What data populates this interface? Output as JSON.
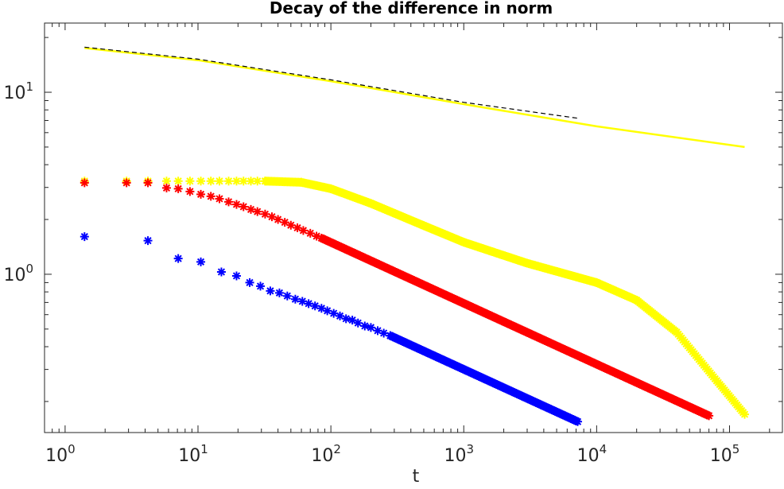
{
  "chart_data": {
    "type": "scatter",
    "title": "Decay of the difference in norm",
    "xlabel": "t",
    "ylabel": "",
    "xscale": "log",
    "yscale": "log",
    "xlim": [
      0.7,
      250000
    ],
    "ylim": [
      0.135,
      24
    ],
    "grid": false,
    "legend": "none",
    "x_ticks": [
      {
        "base": "10",
        "exp": "0",
        "value": 1
      },
      {
        "base": "10",
        "exp": "1",
        "value": 10
      },
      {
        "base": "10",
        "exp": "2",
        "value": 100
      },
      {
        "base": "10",
        "exp": "3",
        "value": 1000
      },
      {
        "base": "10",
        "exp": "4",
        "value": 10000
      },
      {
        "base": "10",
        "exp": "5",
        "value": 100000
      }
    ],
    "y_ticks": [
      {
        "base": "10",
        "exp": "0",
        "value": 1
      },
      {
        "base": "10",
        "exp": "1",
        "value": 10
      }
    ],
    "series": [
      {
        "marker": "asterisk",
        "color": "#0000ff",
        "points": [
          [
            1.4,
            1.61
          ],
          [
            4.2,
            1.53
          ],
          [
            7.1,
            1.22
          ],
          [
            10.5,
            1.17
          ],
          [
            15,
            1.03
          ],
          [
            19.5,
            0.98
          ],
          [
            24.5,
            0.9
          ],
          [
            29.5,
            0.86
          ],
          [
            35,
            0.81
          ],
          [
            41,
            0.79
          ],
          [
            47,
            0.76
          ],
          [
            54,
            0.73
          ],
          [
            61,
            0.71
          ],
          [
            68,
            0.69
          ],
          [
            76,
            0.67
          ],
          [
            85,
            0.65
          ],
          [
            94,
            0.63
          ],
          [
            105,
            0.61
          ],
          [
            117,
            0.59
          ],
          [
            130,
            0.57
          ],
          [
            145,
            0.56
          ],
          [
            160,
            0.54
          ],
          [
            180,
            0.52
          ],
          [
            200,
            0.51
          ],
          [
            225,
            0.49
          ],
          [
            250,
            0.475
          ],
          [
            280,
            0.46
          ],
          [
            7200,
            0.155
          ]
        ],
        "dense_range": [
          280,
          7200
        ]
      },
      {
        "marker": "asterisk",
        "color": "#ff0000",
        "points": [
          [
            1.4,
            3.18
          ],
          [
            2.9,
            3.18
          ],
          [
            4.2,
            3.18
          ],
          [
            5.8,
            2.98
          ],
          [
            7.1,
            2.95
          ],
          [
            8.7,
            2.85
          ],
          [
            10.5,
            2.75
          ],
          [
            12.5,
            2.68
          ],
          [
            14.5,
            2.6
          ],
          [
            17,
            2.5
          ],
          [
            19.5,
            2.42
          ],
          [
            22,
            2.35
          ],
          [
            25,
            2.27
          ],
          [
            28,
            2.21
          ],
          [
            32,
            2.14
          ],
          [
            36,
            2.07
          ],
          [
            40,
            2.0
          ],
          [
            45,
            1.93
          ],
          [
            50,
            1.86
          ],
          [
            56,
            1.8
          ],
          [
            62,
            1.74
          ],
          [
            70,
            1.68
          ],
          [
            78,
            1.62
          ],
          [
            85,
            1.58
          ],
          [
            70000,
            0.167
          ]
        ],
        "dense_range": [
          85,
          70000
        ]
      },
      {
        "marker": "asterisk",
        "color": "#ffff00",
        "points": [
          [
            1.4,
            3.25
          ],
          [
            2.9,
            3.25
          ],
          [
            4.2,
            3.25
          ],
          [
            5.8,
            3.25
          ],
          [
            7.1,
            3.25
          ],
          [
            8.7,
            3.25
          ],
          [
            10.5,
            3.25
          ],
          [
            12.5,
            3.25
          ],
          [
            14.5,
            3.25
          ],
          [
            17,
            3.25
          ],
          [
            19.5,
            3.25
          ],
          [
            22,
            3.25
          ],
          [
            25,
            3.25
          ],
          [
            28,
            3.25
          ],
          [
            32,
            3.25
          ]
        ],
        "dense_curve": [
          [
            32,
            3.25
          ],
          [
            60,
            3.2
          ],
          [
            100,
            2.95
          ],
          [
            200,
            2.45
          ],
          [
            500,
            1.85
          ],
          [
            1000,
            1.5
          ],
          [
            3000,
            1.15
          ],
          [
            10000,
            0.9
          ],
          [
            20000,
            0.72
          ],
          [
            40000,
            0.48
          ],
          [
            80000,
            0.26
          ],
          [
            130000,
            0.17
          ]
        ]
      },
      {
        "marker": "line",
        "color": "#ffff00",
        "points": [
          [
            1.4,
            17.5
          ],
          [
            10,
            15.0
          ],
          [
            100,
            11.5
          ],
          [
            1000,
            8.6
          ],
          [
            10000,
            6.5
          ],
          [
            130000,
            5.0
          ]
        ]
      },
      {
        "marker": "dashed-line",
        "color": "#000000",
        "points": [
          [
            1.4,
            17.7
          ],
          [
            10,
            15.2
          ],
          [
            100,
            11.7
          ],
          [
            1000,
            8.8
          ],
          [
            7200,
            7.2
          ]
        ]
      }
    ]
  }
}
